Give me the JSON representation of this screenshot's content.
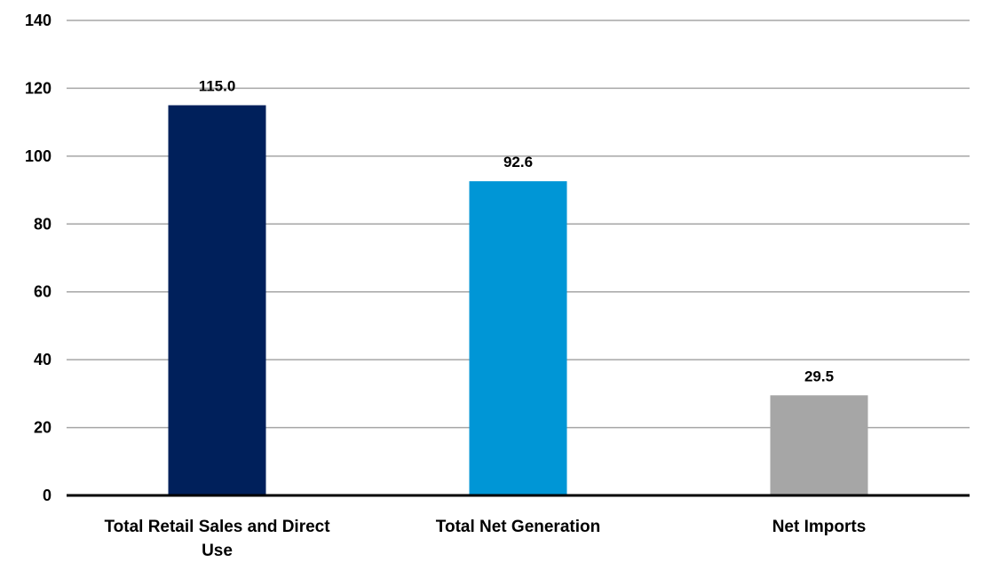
{
  "chart_data": {
    "type": "bar",
    "categories": [
      [
        "Total Retail Sales and Direct",
        "Use"
      ],
      [
        "Total Net Generation"
      ],
      [
        "Net Imports"
      ]
    ],
    "values": [
      115.0,
      92.6,
      29.5
    ],
    "value_labels": [
      "115.0",
      "92.6",
      "29.5"
    ],
    "bar_colors": [
      "#00205b",
      "#0096d6",
      "#a6a6a6"
    ],
    "title": "",
    "xlabel": "",
    "ylabel": "",
    "ylim": [
      0,
      140
    ],
    "yticks": [
      0,
      20,
      40,
      60,
      80,
      100,
      120,
      140
    ],
    "grid": true,
    "legend": "none"
  }
}
